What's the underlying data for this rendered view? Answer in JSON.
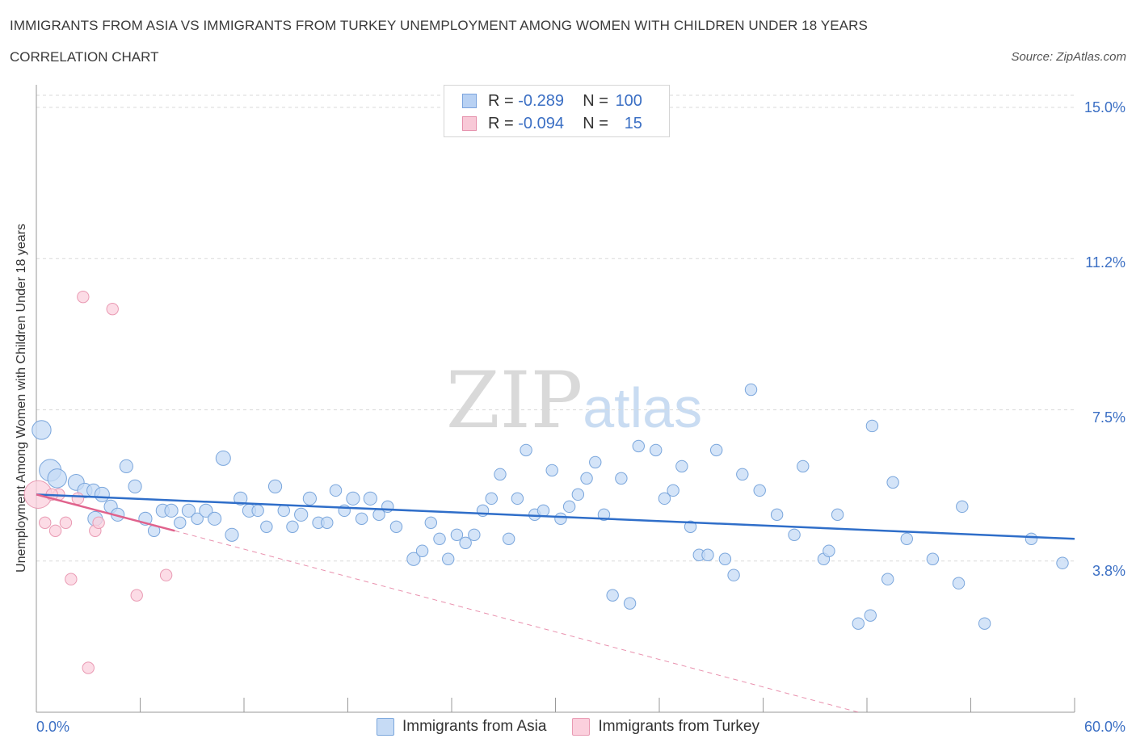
{
  "title": "IMMIGRANTS FROM ASIA VS IMMIGRANTS FROM TURKEY UNEMPLOYMENT AMONG WOMEN WITH CHILDREN UNDER 18 YEARS",
  "subtitle": "CORRELATION CHART",
  "source": "Source: ZipAtlas.com",
  "watermark": {
    "zip": "ZIP",
    "atlas": "atlas"
  },
  "legend": {
    "rows": [
      {
        "r_label": "R =",
        "r_value": "-0.289",
        "n_label": "N =",
        "n_value": "100",
        "fill": "#b8d1f3",
        "stroke": "#7ba3dd"
      },
      {
        "r_label": "R =",
        "r_value": "-0.094",
        "n_label": "N =",
        "n_value": "15",
        "fill": "#f8c9d7",
        "stroke": "#e58fab"
      }
    ]
  },
  "colors": {
    "asia_fill": "#c6dbf5",
    "asia_stroke": "#7aa6dc",
    "asia_line": "#2f6ec9",
    "turkey_fill": "#fbd0dd",
    "turkey_stroke": "#e99ab3",
    "turkey_line": "#e0628c",
    "tick_text": "#3b6fc4",
    "grid": "#d9d9d9"
  },
  "chart_data": {
    "type": "scatter",
    "title": "IMMIGRANTS FROM ASIA VS IMMIGRANTS FROM TURKEY UNEMPLOYMENT AMONG WOMEN WITH CHILDREN UNDER 18 YEARS",
    "xlabel": "",
    "ylabel": "Unemployment Among Women with Children Under 18 years",
    "x_tick_labels": [
      "0.0%",
      "60.0%"
    ],
    "y_tick_labels": [
      "15.0%",
      "11.2%",
      "7.5%",
      "3.8%"
    ],
    "y_tick_values": [
      15.0,
      11.25,
      7.5,
      3.75
    ],
    "xlim": [
      0,
      60
    ],
    "ylim": [
      0,
      15.3
    ],
    "grid": true,
    "legend_position": "top-center",
    "series": [
      {
        "name": "Immigrants from Asia",
        "trend": {
          "x": [
            0,
            60
          ],
          "y": [
            5.4,
            4.3
          ]
        },
        "points": [
          [
            0.3,
            7.0,
            1.3
          ],
          [
            0.8,
            6.0,
            1.5
          ],
          [
            1.2,
            5.8,
            1.3
          ],
          [
            2.3,
            5.7,
            1.1
          ],
          [
            2.8,
            5.5,
            1.0
          ],
          [
            3.3,
            5.5,
            0.9
          ],
          [
            3.4,
            4.8,
            1.0
          ],
          [
            3.8,
            5.4,
            1.0
          ],
          [
            4.3,
            5.1,
            0.9
          ],
          [
            4.7,
            4.9,
            0.9
          ],
          [
            5.2,
            6.1,
            0.9
          ],
          [
            5.7,
            5.6,
            0.9
          ],
          [
            6.3,
            4.8,
            0.9
          ],
          [
            6.8,
            4.5,
            0.8
          ],
          [
            7.3,
            5.0,
            0.9
          ],
          [
            7.8,
            5.0,
            0.9
          ],
          [
            8.3,
            4.7,
            0.8
          ],
          [
            8.8,
            5.0,
            0.9
          ],
          [
            9.3,
            4.8,
            0.8
          ],
          [
            9.8,
            5.0,
            0.9
          ],
          [
            10.3,
            4.8,
            0.9
          ],
          [
            10.8,
            6.3,
            1.0
          ],
          [
            11.3,
            4.4,
            0.9
          ],
          [
            11.8,
            5.3,
            0.9
          ],
          [
            12.3,
            5.0,
            0.9
          ],
          [
            12.8,
            5.0,
            0.8
          ],
          [
            13.3,
            4.6,
            0.8
          ],
          [
            13.8,
            5.6,
            0.9
          ],
          [
            14.3,
            5.0,
            0.8
          ],
          [
            14.8,
            4.6,
            0.8
          ],
          [
            15.3,
            4.9,
            0.9
          ],
          [
            15.8,
            5.3,
            0.9
          ],
          [
            16.3,
            4.7,
            0.8
          ],
          [
            16.8,
            4.7,
            0.8
          ],
          [
            17.3,
            5.5,
            0.8
          ],
          [
            17.8,
            5.0,
            0.8
          ],
          [
            18.3,
            5.3,
            0.9
          ],
          [
            18.8,
            4.8,
            0.8
          ],
          [
            19.3,
            5.3,
            0.9
          ],
          [
            19.8,
            4.9,
            0.8
          ],
          [
            20.3,
            5.1,
            0.8
          ],
          [
            20.8,
            4.6,
            0.8
          ],
          [
            21.8,
            3.8,
            0.9
          ],
          [
            22.3,
            4.0,
            0.8
          ],
          [
            22.8,
            4.7,
            0.8
          ],
          [
            23.3,
            4.3,
            0.8
          ],
          [
            23.8,
            3.8,
            0.8
          ],
          [
            24.3,
            4.4,
            0.8
          ],
          [
            24.8,
            4.2,
            0.8
          ],
          [
            25.3,
            4.4,
            0.8
          ],
          [
            25.8,
            5.0,
            0.8
          ],
          [
            26.3,
            5.3,
            0.8
          ],
          [
            26.8,
            5.9,
            0.8
          ],
          [
            27.3,
            4.3,
            0.8
          ],
          [
            27.8,
            5.3,
            0.8
          ],
          [
            28.3,
            6.5,
            0.8
          ],
          [
            28.8,
            4.9,
            0.8
          ],
          [
            29.3,
            5.0,
            0.8
          ],
          [
            29.8,
            6.0,
            0.8
          ],
          [
            30.3,
            4.8,
            0.8
          ],
          [
            30.8,
            5.1,
            0.8
          ],
          [
            31.3,
            5.4,
            0.8
          ],
          [
            31.8,
            5.8,
            0.8
          ],
          [
            32.3,
            6.2,
            0.8
          ],
          [
            32.8,
            4.9,
            0.8
          ],
          [
            33.3,
            2.9,
            0.8
          ],
          [
            33.8,
            5.8,
            0.8
          ],
          [
            34.3,
            2.7,
            0.8
          ],
          [
            34.8,
            6.6,
            0.8
          ],
          [
            35.8,
            6.5,
            0.8
          ],
          [
            36.3,
            5.3,
            0.8
          ],
          [
            36.8,
            5.5,
            0.8
          ],
          [
            37.3,
            6.1,
            0.8
          ],
          [
            37.8,
            4.6,
            0.8
          ],
          [
            38.3,
            3.9,
            0.8
          ],
          [
            38.8,
            3.9,
            0.8
          ],
          [
            39.3,
            6.5,
            0.8
          ],
          [
            39.8,
            3.8,
            0.8
          ],
          [
            40.3,
            3.4,
            0.8
          ],
          [
            40.8,
            5.9,
            0.8
          ],
          [
            41.3,
            8.0,
            0.8
          ],
          [
            41.8,
            5.5,
            0.8
          ],
          [
            42.8,
            4.9,
            0.8
          ],
          [
            43.8,
            4.4,
            0.8
          ],
          [
            44.3,
            6.1,
            0.8
          ],
          [
            45.5,
            3.8,
            0.8
          ],
          [
            45.8,
            4.0,
            0.8
          ],
          [
            46.3,
            4.9,
            0.8
          ],
          [
            47.5,
            2.2,
            0.8
          ],
          [
            48.2,
            2.4,
            0.8
          ],
          [
            48.3,
            7.1,
            0.8
          ],
          [
            49.5,
            5.7,
            0.8
          ],
          [
            49.2,
            3.3,
            0.8
          ],
          [
            50.3,
            4.3,
            0.8
          ],
          [
            51.8,
            3.8,
            0.8
          ],
          [
            53.3,
            3.2,
            0.8
          ],
          [
            53.5,
            5.1,
            0.8
          ],
          [
            54.8,
            2.2,
            0.8
          ],
          [
            57.5,
            4.3,
            0.8
          ],
          [
            59.3,
            3.7,
            0.8
          ]
        ]
      },
      {
        "name": "Immigrants from Turkey",
        "trend": {
          "x": [
            0,
            8.0
          ],
          "y": [
            5.4,
            4.5
          ]
        },
        "trend_extension": {
          "x": [
            8.0,
            47.5
          ],
          "y": [
            4.5,
            0.0
          ]
        },
        "points": [
          [
            0.1,
            5.4,
            1.9
          ],
          [
            0.5,
            4.7,
            0.8
          ],
          [
            1.1,
            4.5,
            0.8
          ],
          [
            1.3,
            5.4,
            0.8
          ],
          [
            1.7,
            4.7,
            0.8
          ],
          [
            2.0,
            3.3,
            0.8
          ],
          [
            2.4,
            5.3,
            0.8
          ],
          [
            2.7,
            10.3,
            0.8
          ],
          [
            3.0,
            1.1,
            0.8
          ],
          [
            3.4,
            4.5,
            0.8
          ],
          [
            3.6,
            4.7,
            0.8
          ],
          [
            4.4,
            10.0,
            0.8
          ],
          [
            5.8,
            2.9,
            0.8
          ],
          [
            7.5,
            3.4,
            0.8
          ],
          [
            0.9,
            5.4,
            0.8
          ]
        ]
      }
    ]
  }
}
